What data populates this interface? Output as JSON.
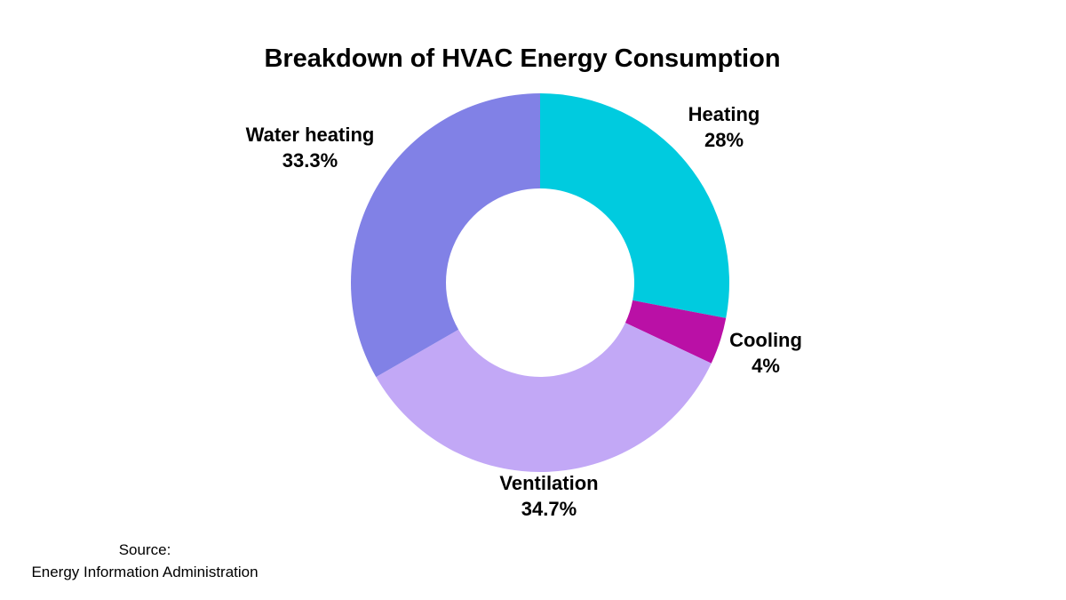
{
  "chart_data": {
    "type": "pie",
    "variant": "donut",
    "title": "Breakdown of HVAC Energy Consumption",
    "start_angle_deg": 0,
    "direction": "clockwise",
    "legend": "none",
    "slices": [
      {
        "label": "Heating",
        "value": 28,
        "value_label": "28%",
        "color": "#00CBDF"
      },
      {
        "label": "Cooling",
        "value": 4,
        "value_label": "4%",
        "color": "#BA10A6"
      },
      {
        "label": "Ventilation",
        "value": 34.7,
        "value_label": "34.7%",
        "color": "#C2A8F6"
      },
      {
        "label": "Water heating",
        "value": 33.3,
        "value_label": "33.3%",
        "color": "#8181E6"
      }
    ]
  },
  "source": {
    "heading": "Source:",
    "name": "Energy Information Administration"
  }
}
